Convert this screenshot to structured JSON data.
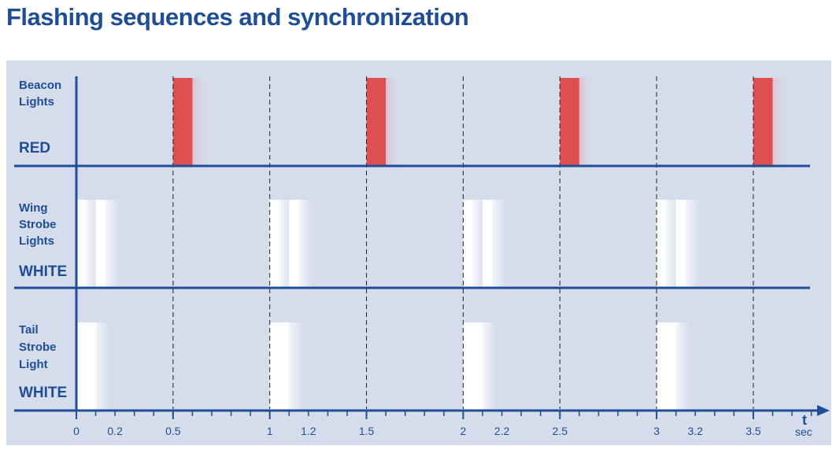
{
  "title": "Flashing sequences and synchronization",
  "rows": [
    {
      "id": "beacon",
      "label_lines": [
        "Beacon",
        "Lights"
      ],
      "color_label": "RED"
    },
    {
      "id": "wing",
      "label_lines": [
        "Wing",
        "Strobe",
        "Lights"
      ],
      "color_label": "WHITE"
    },
    {
      "id": "tail",
      "label_lines": [
        "Tail",
        "Strobe",
        "Light"
      ],
      "color_label": "WHITE"
    }
  ],
  "axis": {
    "letter": "t",
    "unit": "sec"
  },
  "tick_labels": [
    "0",
    "0.2",
    "0.5",
    "1",
    "1.2",
    "1.5",
    "2",
    "2.2",
    "2.5",
    "3",
    "3.2",
    "3.5"
  ],
  "colors": {
    "line": "#1f4e96",
    "panel": "#d5dcec",
    "red_flash": "#df4f4f",
    "white_flash": "#ffffff"
  },
  "chart_data": {
    "type": "timing-diagram",
    "x_unit": "sec",
    "xlim": [
      0,
      3.7
    ],
    "sync_lines": [
      0.5,
      1,
      1.5,
      2,
      2.5,
      3,
      3.5
    ],
    "series": [
      {
        "name": "Beacon Lights RED",
        "color": "red",
        "pulses": [
          [
            0.5,
            0.6
          ],
          [
            1.5,
            1.6
          ],
          [
            2.5,
            2.6
          ],
          [
            3.5,
            3.6
          ]
        ]
      },
      {
        "name": "Wing Strobe Lights WHITE",
        "color": "white",
        "pulses": [
          [
            0.0,
            0.05
          ],
          [
            0.1,
            0.15
          ],
          [
            1.0,
            1.05
          ],
          [
            1.1,
            1.15
          ],
          [
            2.0,
            2.05
          ],
          [
            2.1,
            2.15
          ],
          [
            3.0,
            3.05
          ],
          [
            3.1,
            3.15
          ]
        ]
      },
      {
        "name": "Tail Strobe Light WHITE",
        "color": "white",
        "pulses": [
          [
            0.0,
            0.1
          ],
          [
            1.0,
            1.1
          ],
          [
            2.0,
            2.1
          ],
          [
            3.0,
            3.1
          ]
        ]
      }
    ]
  }
}
